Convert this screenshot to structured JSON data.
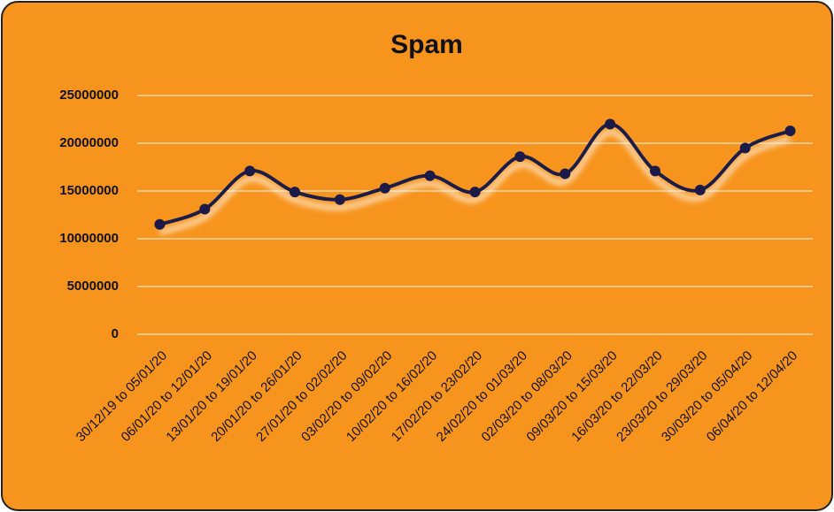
{
  "chart_data": {
    "type": "line",
    "title": "Spam",
    "categories": [
      "30/12/19 to 05/01/20",
      "06/01/20 to 12/01/20",
      "13/01/20 to 19/01/20",
      "20/01/20 to 26/01/20",
      "27/01/20 to 02/02/20",
      "03/02/20 to 09/02/20",
      "10/02/20 to 16/02/20",
      "17/02/20 to 23/02/20",
      "24/02/20 to 01/03/20",
      "02/03/20 to 08/03/20",
      "09/03/20 to 15/03/20",
      "16/03/20 to 22/03/20",
      "23/03/20 to 29/03/20",
      "30/03/20 to 05/04/20",
      "06/04/20 to 12/04/20"
    ],
    "values": [
      11500000,
      13100000,
      17100000,
      14900000,
      14100000,
      15300000,
      16600000,
      14900000,
      18600000,
      16800000,
      22000000,
      17100000,
      15100000,
      19500000,
      21300000
    ],
    "color": "#1c1a48",
    "background": "#f7941d",
    "ylim": [
      0,
      25000000
    ],
    "yticks": [
      0,
      5000000,
      10000000,
      15000000,
      20000000,
      25000000
    ],
    "grid": true
  }
}
